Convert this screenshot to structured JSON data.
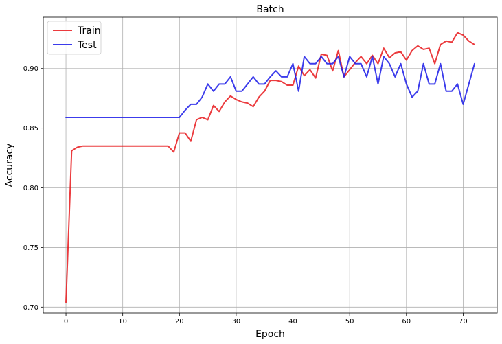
{
  "chart_data": {
    "type": "line",
    "title": "Batch",
    "xlabel": "Epoch",
    "ylabel": "Accuracy",
    "xlim": [
      -4,
      76
    ],
    "ylim": [
      0.695,
      0.943
    ],
    "xticks": [
      0,
      10,
      20,
      30,
      40,
      50,
      60,
      70
    ],
    "xtick_labels": [
      "0",
      "10",
      "20",
      "30",
      "40",
      "50",
      "60",
      "70"
    ],
    "yticks": [
      0.7,
      0.75,
      0.8,
      0.85,
      0.9
    ],
    "ytick_labels": [
      "0.70",
      "0.75",
      "0.80",
      "0.85",
      "0.90"
    ],
    "grid": true,
    "legend_position": "top-left",
    "x": [
      0,
      1,
      2,
      3,
      4,
      5,
      6,
      7,
      8,
      9,
      10,
      11,
      12,
      13,
      14,
      15,
      16,
      17,
      18,
      19,
      20,
      21,
      22,
      23,
      24,
      25,
      26,
      27,
      28,
      29,
      30,
      31,
      32,
      33,
      34,
      35,
      36,
      37,
      38,
      39,
      40,
      41,
      42,
      43,
      44,
      45,
      46,
      47,
      48,
      49,
      50,
      51,
      52,
      53,
      54,
      55,
      56,
      57,
      58,
      59,
      60,
      61,
      62,
      63,
      64,
      65,
      66,
      67,
      68,
      69,
      70,
      71,
      72
    ],
    "series": [
      {
        "name": "Train",
        "color": "#e8191c",
        "values": [
          0.704,
          0.831,
          0.834,
          0.835,
          0.835,
          0.835,
          0.835,
          0.835,
          0.835,
          0.835,
          0.835,
          0.835,
          0.835,
          0.835,
          0.835,
          0.835,
          0.835,
          0.835,
          0.835,
          0.83,
          0.846,
          0.846,
          0.839,
          0.857,
          0.859,
          0.857,
          0.869,
          0.864,
          0.872,
          0.877,
          0.874,
          0.872,
          0.871,
          0.868,
          0.876,
          0.881,
          0.89,
          0.89,
          0.889,
          0.886,
          0.886,
          0.902,
          0.894,
          0.899,
          0.892,
          0.912,
          0.911,
          0.898,
          0.915,
          0.893,
          0.899,
          0.905,
          0.91,
          0.904,
          0.911,
          0.904,
          0.917,
          0.909,
          0.913,
          0.914,
          0.907,
          0.915,
          0.919,
          0.916,
          0.917,
          0.904,
          0.92,
          0.923,
          0.922,
          0.93,
          0.928,
          0.923,
          0.92
        ]
      },
      {
        "name": "Test",
        "color": "#1a1ae8",
        "values": [
          0.859,
          0.859,
          0.859,
          0.859,
          0.859,
          0.859,
          0.859,
          0.859,
          0.859,
          0.859,
          0.859,
          0.859,
          0.859,
          0.859,
          0.859,
          0.859,
          0.859,
          0.859,
          0.859,
          0.859,
          0.859,
          0.865,
          0.87,
          0.87,
          0.876,
          0.887,
          0.881,
          0.887,
          0.887,
          0.893,
          0.881,
          0.881,
          0.887,
          0.893,
          0.887,
          0.887,
          0.893,
          0.898,
          0.893,
          0.893,
          0.904,
          0.881,
          0.91,
          0.904,
          0.904,
          0.91,
          0.904,
          0.904,
          0.91,
          0.893,
          0.91,
          0.904,
          0.904,
          0.893,
          0.91,
          0.887,
          0.91,
          0.904,
          0.893,
          0.904,
          0.887,
          0.876,
          0.881,
          0.904,
          0.887,
          0.887,
          0.904,
          0.881,
          0.881,
          0.887,
          0.87,
          0.887,
          0.904
        ]
      }
    ]
  }
}
